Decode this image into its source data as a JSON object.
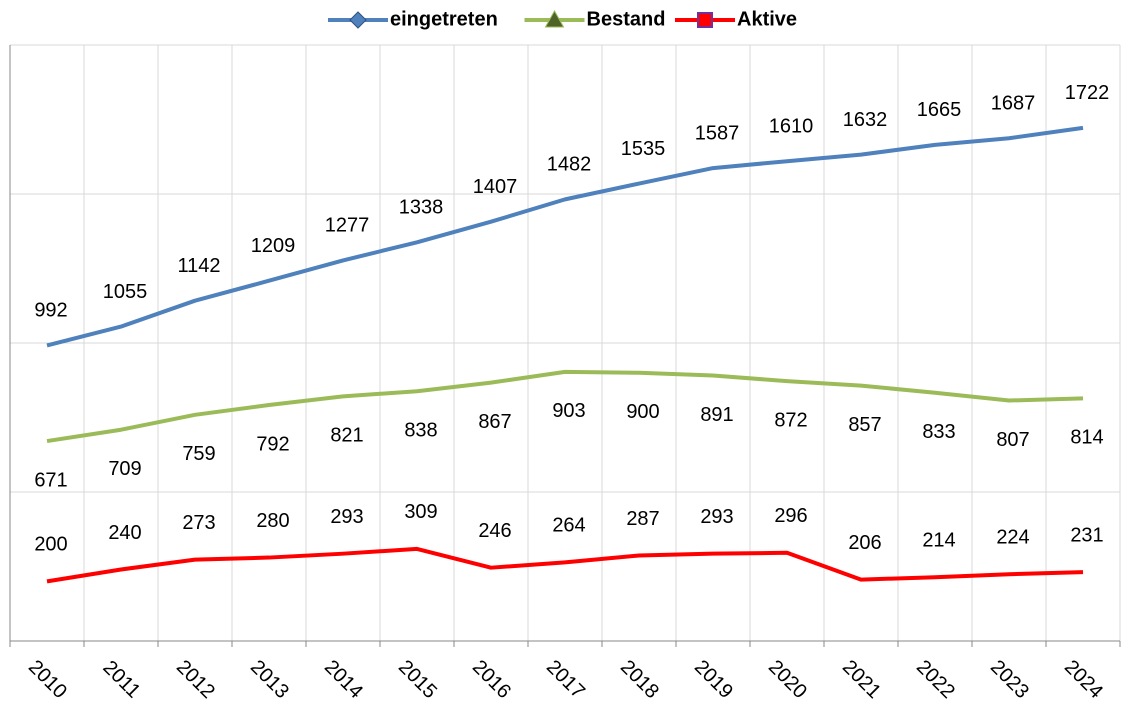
{
  "chart_data": {
    "type": "line",
    "categories": [
      "2010",
      "2011",
      "2012",
      "2013",
      "2014",
      "2015",
      "2016",
      "2017",
      "2018",
      "2019",
      "2020",
      "2021",
      "2022",
      "2023",
      "2024"
    ],
    "series": [
      {
        "name": "eingetreten",
        "color": "#4f81bd",
        "marker": "diamond",
        "values": [
          992,
          1055,
          1142,
          1209,
          1277,
          1338,
          1407,
          1482,
          1535,
          1587,
          1610,
          1632,
          1665,
          1687,
          1722
        ]
      },
      {
        "name": "Bestand",
        "color": "#9bbb59",
        "marker": "triangle",
        "values": [
          671,
          709,
          759,
          792,
          821,
          838,
          867,
          903,
          900,
          891,
          872,
          857,
          833,
          807,
          814
        ]
      },
      {
        "name": "Aktive",
        "color": "#ff0000",
        "marker": "square",
        "values": [
          200,
          240,
          273,
          280,
          293,
          309,
          246,
          264,
          287,
          293,
          296,
          206,
          214,
          224,
          231
        ]
      }
    ],
    "ylim": [
      0,
      2000
    ],
    "yticks": [
      0,
      500,
      1000,
      1500,
      2000
    ],
    "grid": true,
    "legend": "top"
  }
}
